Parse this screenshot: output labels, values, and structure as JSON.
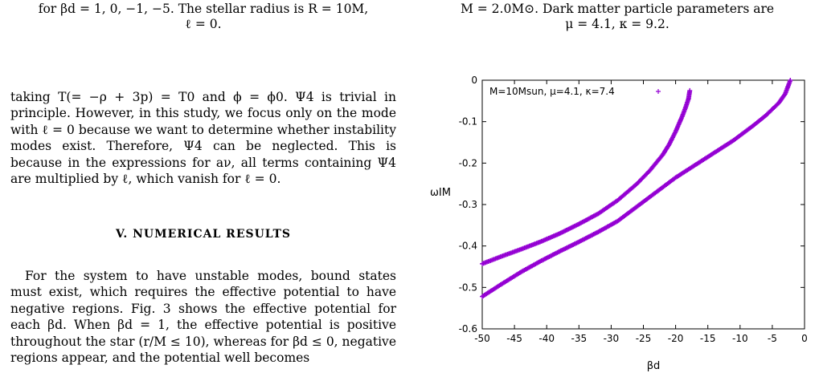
{
  "left_column": {
    "caption_tail_line1": "for βd = 1, 0, −1, −5. The stellar radius is R = 10M,",
    "caption_tail_line2": "ℓ = 0.",
    "paragraph1": "taking T(= −ρ + 3p) = T0 and ϕ = ϕ0. Ψ4 is trivial in principle. However, in this study, we focus only on the mode with ℓ = 0 because we want to determine whether instability modes exist. Therefore, Ψ4 can be neglected. This is because in the expressions for aν, all terms containing Ψ4 are multiplied by ℓ, which vanish for ℓ = 0.",
    "section_heading": "V. NUMERICAL RESULTS",
    "paragraph2": "For the system to have unstable modes, bound states must exist, which requires the effective potential to have negative regions. Fig. 3 shows the effective potential for each βd. When βd = 1, the effective potential is positive throughout the star (r/M ≤ 10), whereas for βd ≤ 0, negative regions appear, and the potential well becomes"
  },
  "right_column": {
    "caption_tail_line1": "M = 2.0M⊙. Dark matter particle parameters are",
    "caption_tail_line2": "μ = 4.1, κ = 9.2."
  },
  "chart_data": {
    "type": "scatter",
    "title": "",
    "xlabel": "βd",
    "ylabel": "ωIM",
    "xlim": [
      -50,
      0
    ],
    "ylim": [
      -0.6,
      0
    ],
    "x_ticks": [
      "-50",
      "-45",
      "-40",
      "-35",
      "-30",
      "-25",
      "-20",
      "-15",
      "-10",
      "-5",
      "0"
    ],
    "y_ticks": [
      "0",
      "-0.1",
      "-0.2",
      "-0.3",
      "-0.4",
      "-0.5",
      "-0.6"
    ],
    "legend_position": "top-left",
    "grid": false,
    "series": [
      {
        "name": "M=10Msun, μ=4.1, κ=7.4",
        "color": "#9400d3",
        "branches": [
          {
            "x": [
              -50,
              -47,
              -44,
              -41,
              -38,
              -35,
              -32,
              -29,
              -26,
              -24,
              -22,
              -21,
              -20,
              -19,
              -18.5,
              -18,
              -17.8
            ],
            "y": [
              -0.443,
              -0.425,
              -0.408,
              -0.39,
              -0.37,
              -0.347,
              -0.322,
              -0.29,
              -0.25,
              -0.218,
              -0.18,
              -0.155,
              -0.124,
              -0.088,
              -0.068,
              -0.045,
              -0.025
            ]
          },
          {
            "x": [
              -50,
              -47,
              -44,
              -41,
              -38,
              -35,
              -32,
              -29,
              -26,
              -23,
              -20,
              -17,
              -14,
              -11,
              -8,
              -6,
              -4,
              -3,
              -2.2
            ],
            "y": [
              -0.522,
              -0.492,
              -0.463,
              -0.437,
              -0.413,
              -0.39,
              -0.366,
              -0.34,
              -0.305,
              -0.27,
              -0.235,
              -0.205,
              -0.175,
              -0.145,
              -0.11,
              -0.085,
              -0.055,
              -0.033,
              0
            ]
          }
        ]
      }
    ]
  }
}
